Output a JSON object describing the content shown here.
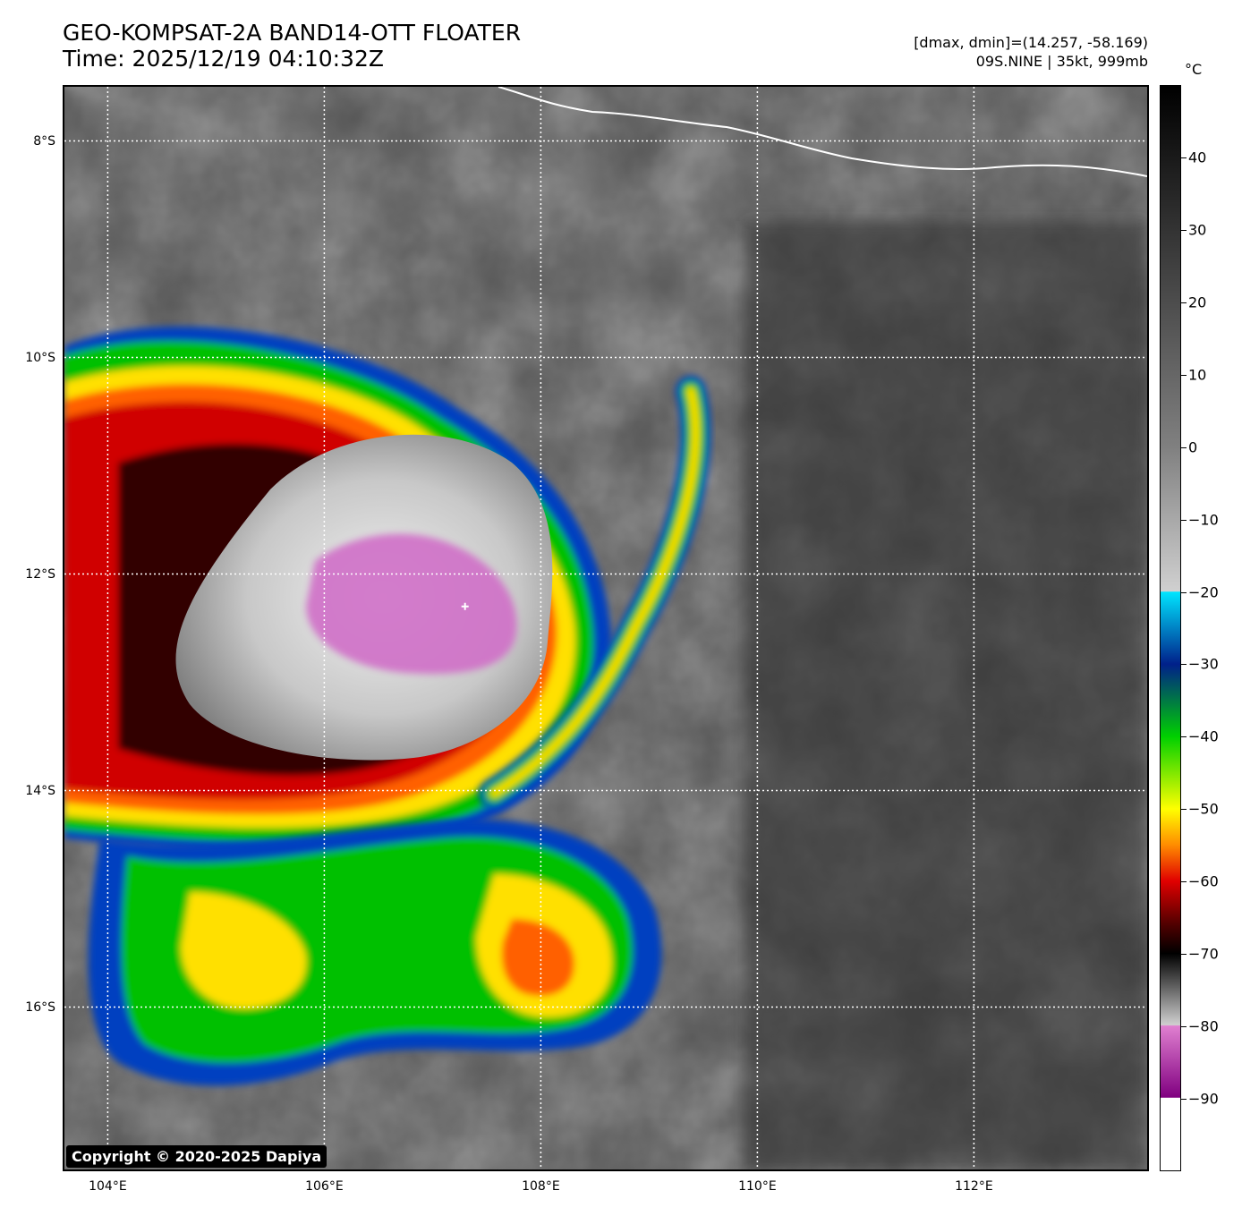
{
  "header": {
    "title": "GEO-KOMPSAT-2A BAND14-OTT FLOATER",
    "time": "Time: 2025/12/19 04:10:32Z",
    "dminmax": "[dmax, dmin]=(14.257, -58.169)",
    "storm": "09S.NINE | 35kt, 999mb"
  },
  "map": {
    "lon_range": [
      103.6,
      113.6
    ],
    "lat_range": [
      -17.5,
      -7.5
    ],
    "lon_ticks": [
      {
        "value": 104,
        "label": "104°E"
      },
      {
        "value": 106,
        "label": "106°E"
      },
      {
        "value": 108,
        "label": "108°E"
      },
      {
        "value": 110,
        "label": "110°E"
      },
      {
        "value": 112,
        "label": "112°E"
      }
    ],
    "lat_ticks": [
      {
        "value": -8,
        "label": "8°S"
      },
      {
        "value": -10,
        "label": "10°S"
      },
      {
        "value": -12,
        "label": "12°S"
      },
      {
        "value": -14,
        "label": "14°S"
      },
      {
        "value": -16,
        "label": "16°S"
      }
    ],
    "storm_center": {
      "lon": 107.3,
      "lat": -12.3
    },
    "copyright": "Copyright © 2020-2025 Dapiya"
  },
  "colorbar": {
    "unit": "°C",
    "range": [
      -100,
      50
    ],
    "ticks": [
      {
        "value": 40,
        "label": "40"
      },
      {
        "value": 30,
        "label": "30"
      },
      {
        "value": 20,
        "label": "20"
      },
      {
        "value": 10,
        "label": "10"
      },
      {
        "value": 0,
        "label": "0"
      },
      {
        "value": -10,
        "label": "−10"
      },
      {
        "value": -20,
        "label": "−20"
      },
      {
        "value": -30,
        "label": "−30"
      },
      {
        "value": -40,
        "label": "−40"
      },
      {
        "value": -50,
        "label": "−50"
      },
      {
        "value": -60,
        "label": "−60"
      },
      {
        "value": -70,
        "label": "−70"
      },
      {
        "value": -80,
        "label": "−80"
      },
      {
        "value": -90,
        "label": "−90"
      }
    ],
    "colors": {
      "warm_top": "#000000",
      "warm_mid": "#808080",
      "cold_gray": "#d0d0d0",
      "cyan": "#00e5ff",
      "blue": "#00208a",
      "green": "#00d000",
      "yellow": "#ffff00",
      "orange": "#ff8c00",
      "red": "#e00000",
      "dark_red": "#500000",
      "black": "#000000",
      "magenta": "#e080d0",
      "purple": "#800080",
      "white": "#ffffff"
    }
  }
}
